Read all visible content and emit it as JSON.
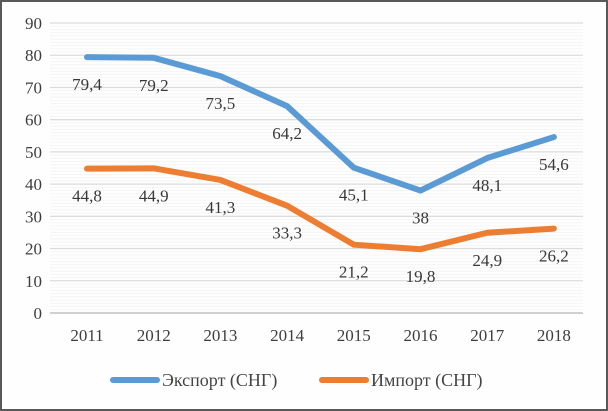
{
  "frame": {
    "background": "#ffffff",
    "border_color": "#595959"
  },
  "chart_data": {
    "type": "line",
    "title": "",
    "categories": [
      "2011",
      "2012",
      "2013",
      "2014",
      "2015",
      "2016",
      "2017",
      "2018"
    ],
    "series": [
      {
        "name": "Экспорт (СНГ)",
        "color": "#5B9BD5",
        "values": [
          79.4,
          79.2,
          73.5,
          64.2,
          45.1,
          38,
          48.1,
          54.6
        ],
        "labels": [
          "79,4",
          "79,2",
          "73,5",
          "64,2",
          "45,1",
          "38",
          "48,1",
          "54,6"
        ]
      },
      {
        "name": "Импорт (СНГ)",
        "color": "#ED7D31",
        "values": [
          44.8,
          44.9,
          41.3,
          33.3,
          21.2,
          19.8,
          24.9,
          26.2
        ],
        "labels": [
          "44,8",
          "44,9",
          "41,3",
          "33,3",
          "21,2",
          "19,8",
          "24,9",
          "26,2"
        ]
      }
    ],
    "xlabel": "",
    "ylabel": "",
    "ylim": [
      0,
      90
    ],
    "ytick_step": 10,
    "grid": {
      "minor_step": 1,
      "major_step": 10,
      "minor_color": "#f5f5f5",
      "major_color": "#dcdcdc",
      "axis_color": "#c3c3c3"
    },
    "legend_position": "bottom",
    "text_color": "#3d3d3d"
  }
}
